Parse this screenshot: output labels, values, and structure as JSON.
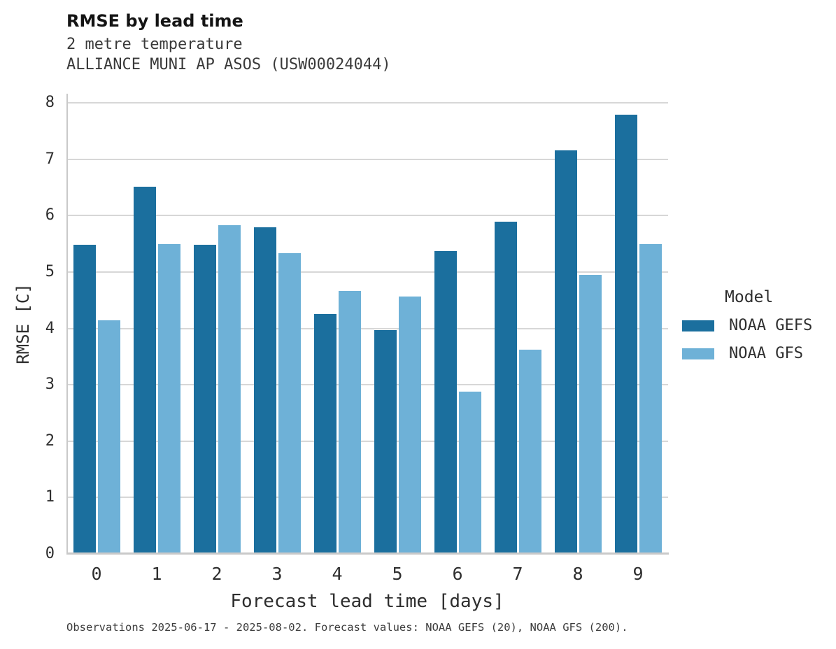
{
  "header": {
    "title": "RMSE by lead time",
    "subtitle1": "2 metre temperature",
    "subtitle2": "ALLIANCE MUNI AP ASOS (USW00024044)"
  },
  "chart_data": {
    "type": "bar",
    "title": "RMSE by lead time",
    "xlabel": "Forecast lead time [days]",
    "ylabel": "RMSE [C]",
    "categories": [
      "0",
      "1",
      "2",
      "3",
      "4",
      "5",
      "6",
      "7",
      "8",
      "9"
    ],
    "series": [
      {
        "name": "NOAA GEFS",
        "color": "#1b6f9e",
        "values": [
          5.48,
          6.51,
          5.48,
          5.79,
          4.25,
          3.97,
          5.37,
          5.89,
          7.16,
          7.79
        ]
      },
      {
        "name": "NOAA GFS",
        "color": "#6eb1d7",
        "values": [
          4.14,
          5.5,
          5.83,
          5.33,
          4.66,
          4.57,
          2.88,
          3.62,
          4.95,
          5.49
        ]
      }
    ],
    "ylim": [
      0,
      8
    ],
    "yticks": [
      0,
      1,
      2,
      3,
      4,
      5,
      6,
      7,
      8
    ],
    "grid": true,
    "legend_title": "Model",
    "legend_position": "right",
    "colors": {
      "grid": "#d7d7d7",
      "spine": "#c9c9c9"
    }
  },
  "footer": {
    "note": "Observations 2025-06-17 - 2025-08-02. Forecast values: NOAA GEFS (20), NOAA GFS (200)."
  }
}
